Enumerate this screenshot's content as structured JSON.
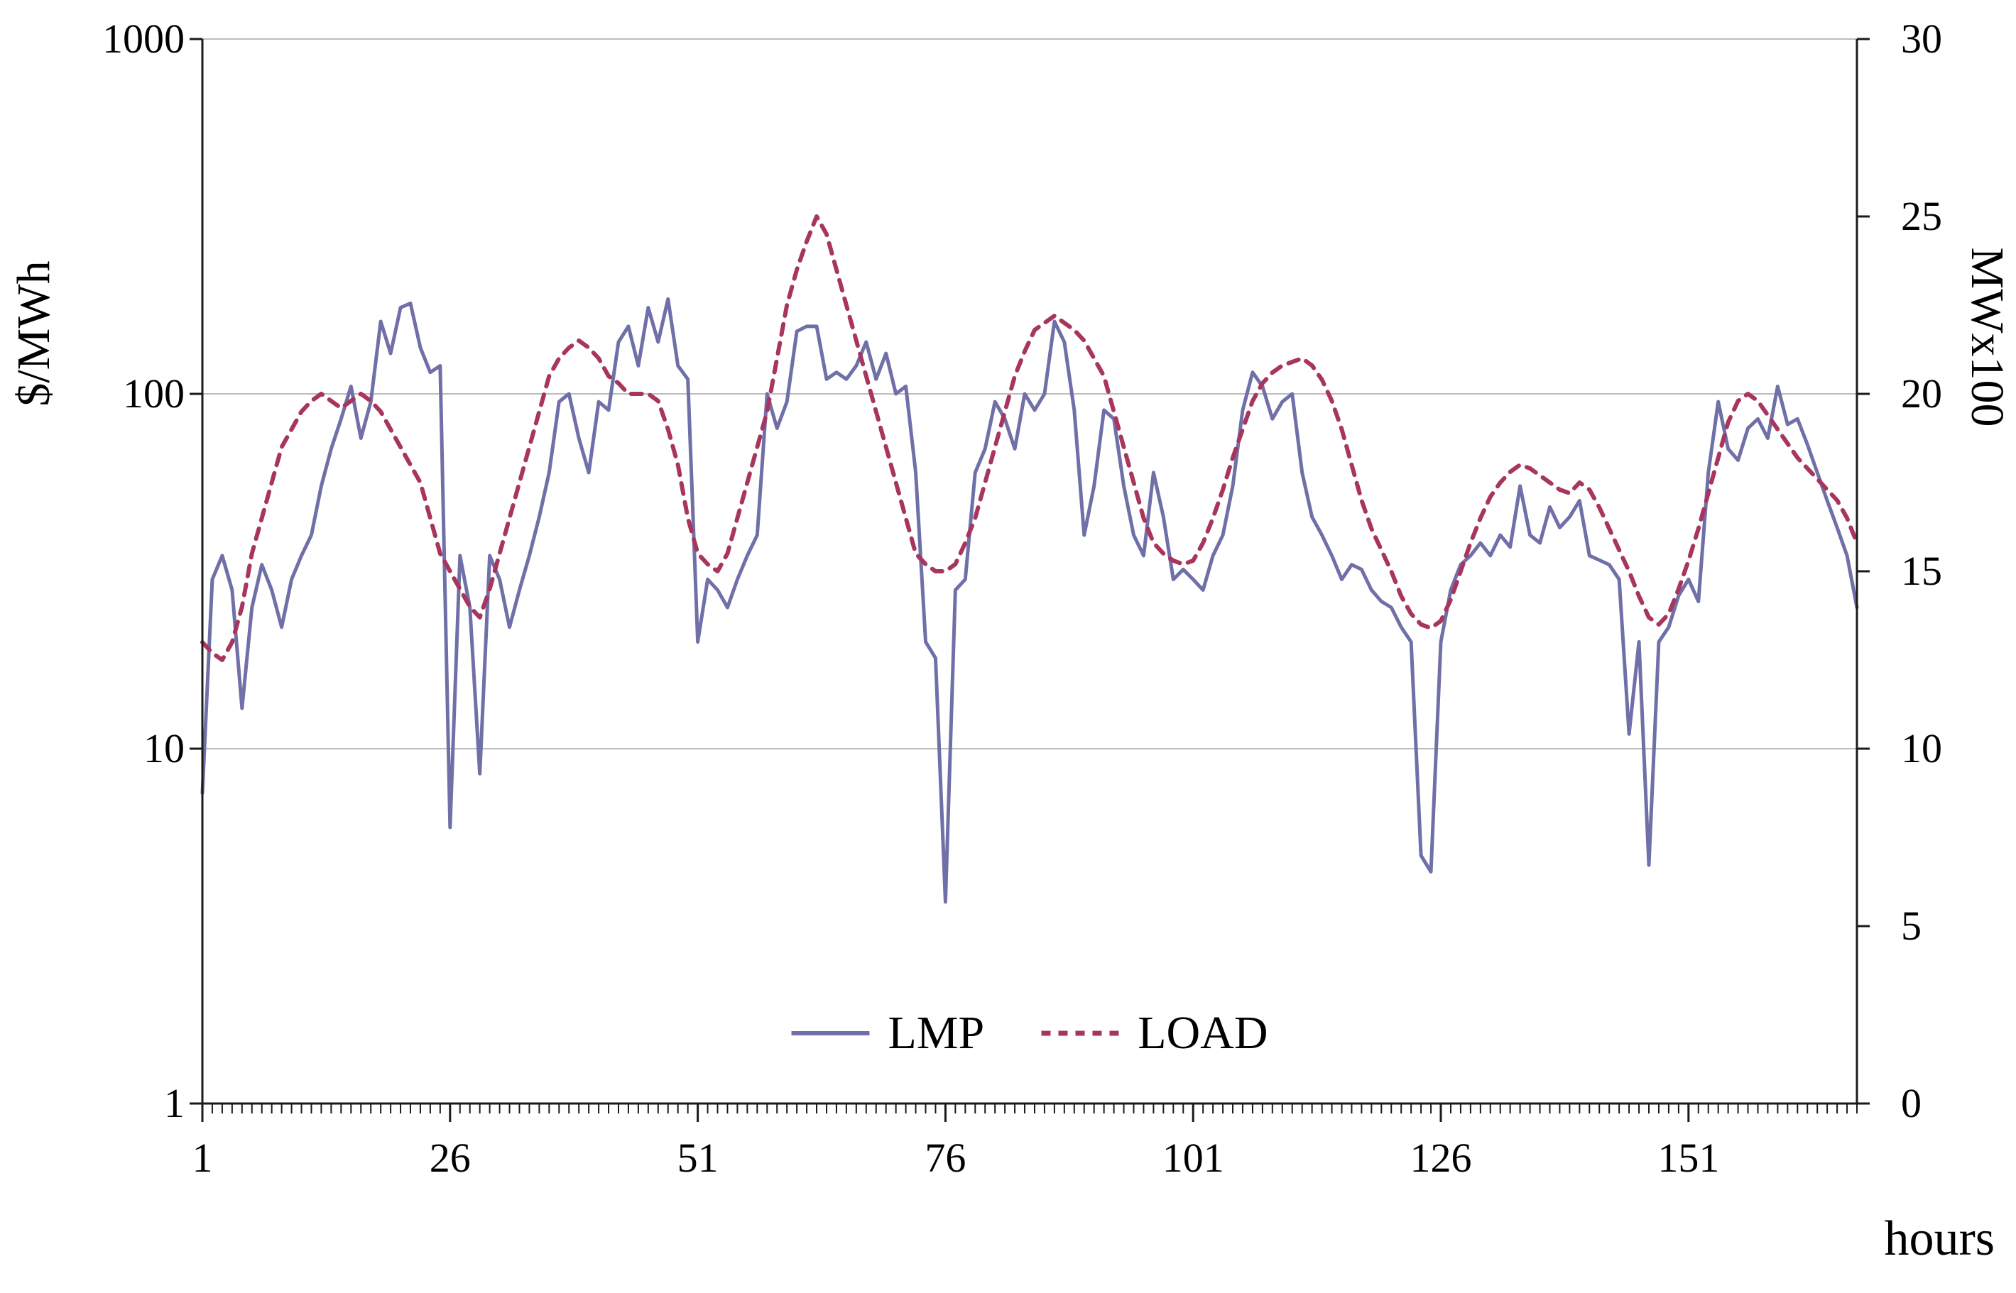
{
  "colors": {
    "lmp_line": "#7070A8",
    "load_line": "#A8355E",
    "gridline": "#bdbdbd",
    "axis": "#1a1a1a",
    "text": "#000000"
  },
  "chart_data": {
    "type": "line",
    "title": "",
    "x_label": "hours",
    "y_left_label": "$/MWh",
    "y_right_label": "MWx100",
    "y_left_scale": "log",
    "y_left_range": [
      1,
      1000
    ],
    "y_right_scale": "linear",
    "y_right_range": [
      0,
      30
    ],
    "x_range": [
      1,
      168
    ],
    "x_ticks": [
      1,
      26,
      51,
      76,
      101,
      126,
      151
    ],
    "y_left_ticks": [
      1000,
      100,
      10,
      1
    ],
    "y_right_ticks": [
      30,
      25,
      20,
      15,
      10,
      5,
      0
    ],
    "gridlines_at_left_values": [
      1000,
      100,
      10
    ],
    "legend_position": "bottom-center-inside",
    "series": [
      {
        "name": "LMP",
        "axis": "left",
        "style": "solid",
        "color": "#7070A8",
        "values": [
          7.5,
          30,
          35,
          28,
          13,
          25,
          33,
          28,
          22,
          30,
          35,
          40,
          55,
          70,
          85,
          105,
          75,
          95,
          160,
          130,
          175,
          180,
          135,
          115,
          120,
          6,
          35,
          25,
          8.5,
          35,
          30,
          22,
          28,
          35,
          45,
          60,
          95,
          100,
          75,
          60,
          95,
          90,
          140,
          155,
          120,
          175,
          140,
          185,
          120,
          110,
          20,
          30,
          28,
          25,
          30,
          35,
          40,
          100,
          80,
          95,
          150,
          155,
          155,
          110,
          115,
          110,
          120,
          140,
          110,
          130,
          100,
          105,
          60,
          20,
          18,
          3.7,
          28,
          30,
          60,
          70,
          95,
          85,
          70,
          100,
          90,
          100,
          160,
          140,
          90,
          40,
          55,
          90,
          85,
          55,
          40,
          35,
          60,
          45,
          30,
          32,
          30,
          28,
          35,
          40,
          55,
          90,
          115,
          105,
          85,
          95,
          100,
          60,
          45,
          40,
          35,
          30,
          33,
          32,
          28,
          26,
          25,
          22,
          20,
          5,
          4.5,
          20,
          28,
          33,
          35,
          38,
          35,
          40,
          37,
          55,
          40,
          38,
          48,
          42,
          45,
          50,
          35,
          34,
          33,
          30,
          11,
          20,
          4.7,
          20,
          22,
          27,
          30,
          26,
          60,
          95,
          70,
          65,
          80,
          85,
          75,
          105,
          82,
          85,
          72,
          60,
          50,
          42,
          35,
          25
        ]
      },
      {
        "name": "LOAD",
        "axis": "right",
        "style": "dashed",
        "color": "#A8355E",
        "values": [
          13,
          12.7,
          12.5,
          13,
          14,
          15.5,
          16.5,
          17.5,
          18.5,
          19,
          19.5,
          19.8,
          20,
          19.8,
          19.6,
          19.8,
          20,
          19.8,
          19.5,
          19,
          18.5,
          18,
          17.5,
          16.5,
          15.5,
          15,
          14.5,
          14,
          13.7,
          14.5,
          15.5,
          16.5,
          17.5,
          18.5,
          19.5,
          20.5,
          21,
          21.3,
          21.5,
          21.3,
          21,
          20.5,
          20.3,
          20,
          20,
          20,
          19.8,
          19,
          18,
          16.5,
          15.5,
          15.2,
          15,
          15.5,
          16.5,
          17.5,
          18.5,
          19.5,
          21,
          22.5,
          23.5,
          24.3,
          25,
          24.5,
          23.5,
          22.5,
          21.5,
          20.5,
          19.5,
          18.5,
          17.5,
          16.5,
          15.5,
          15.2,
          15,
          15,
          15.2,
          15.8,
          16.5,
          17.5,
          18.5,
          19.5,
          20.5,
          21.2,
          21.8,
          22,
          22.2,
          22,
          21.8,
          21.5,
          21,
          20.5,
          19.5,
          18.5,
          17.5,
          16.5,
          15.8,
          15.5,
          15.3,
          15.2,
          15.3,
          15.8,
          16.5,
          17.3,
          18.2,
          19,
          19.8,
          20.3,
          20.6,
          20.8,
          20.9,
          21,
          20.8,
          20.4,
          19.8,
          19,
          18,
          17,
          16.2,
          15.6,
          15,
          14.3,
          13.8,
          13.5,
          13.4,
          13.6,
          14.2,
          15,
          15.8,
          16.5,
          17.1,
          17.5,
          17.8,
          18,
          17.9,
          17.7,
          17.5,
          17.3,
          17.2,
          17.5,
          17.3,
          16.8,
          16.2,
          15.6,
          15,
          14.3,
          13.7,
          13.5,
          13.8,
          14.5,
          15.3,
          16.2,
          17.2,
          18.2,
          19.2,
          19.8,
          20,
          19.8,
          19.4,
          19,
          18.6,
          18.2,
          17.9,
          17.6,
          17.3,
          17,
          16.5,
          15.8
        ]
      }
    ]
  }
}
